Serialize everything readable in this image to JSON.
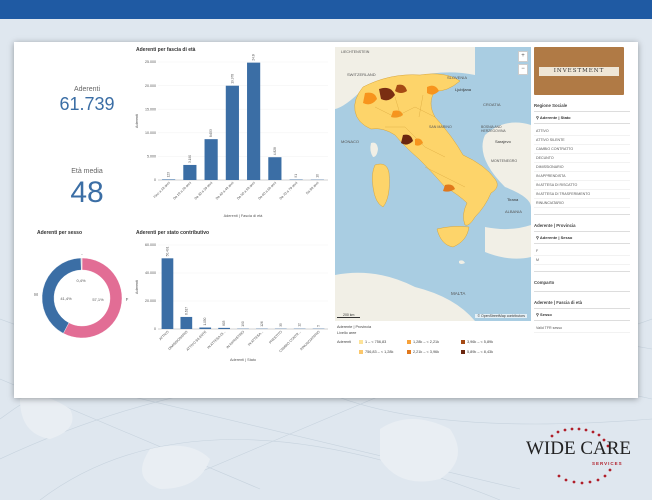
{
  "kpi": {
    "members_label": "Aderenti",
    "members_value": "61.739",
    "age_label": "Età media",
    "age_value": "48"
  },
  "age_chart": {
    "title": "Aderenti per fascia di età",
    "y_label": "Aderenti",
    "x_label": "Aderenti | Fascia di età",
    "y_ticks": [
      "25.000",
      "20.000",
      "15.000",
      "10.000",
      "5.000",
      "0"
    ]
  },
  "gender_chart": {
    "title": "Aderenti per sesso",
    "label_m": "M",
    "label_f": "F",
    "label_top": "-",
    "pct_m": "41,4%",
    "pct_f": "57,1%",
    "pct_other": "0,4%"
  },
  "status_chart": {
    "title": "Aderenti per stato contributivo",
    "y_label": "Aderenti",
    "x_label": "Aderenti | Stato",
    "y_ticks": [
      "60.000",
      "40.000",
      "20.000",
      "0"
    ]
  },
  "chart_data": [
    {
      "type": "bar",
      "title": "Aderenti per fascia di età",
      "xlabel": "Aderenti | Fascia di età",
      "ylabel": "Aderenti",
      "ylim": [
        0,
        25000
      ],
      "categories": [
        "Fino a 18 anni",
        "Da 19 a 29 anni",
        "Da 30 a 39 anni",
        "Da 40 a 49 anni",
        "Da 50 a 59 anni",
        "Da 60 a 69 anni",
        "Da 70 a 79 anni",
        "Da 80 anni"
      ],
      "values": [
        123,
        3190,
        8653,
        19978,
        24866,
        4828,
        91,
        10
      ],
      "value_labels": [
        "123",
        "3.190",
        "8.653",
        "19.978",
        "24.866",
        "4.828",
        "91",
        "10"
      ]
    },
    {
      "type": "pie",
      "title": "Aderenti per sesso",
      "categories": [
        "M",
        "F",
        "-"
      ],
      "values": [
        41.4,
        57.1,
        0.4
      ],
      "value_labels": [
        "41,4%",
        "57,1%",
        "0,4%"
      ]
    },
    {
      "type": "bar",
      "title": "Aderenti per stato contributivo",
      "xlabel": "Aderenti | Stato",
      "ylabel": "Aderenti",
      "ylim": [
        0,
        60000
      ],
      "categories": [
        "ATTIVO",
        "DIMISSIONARIO",
        "ATTIVO SILENTE",
        "IN ATTESA DI...",
        "IN RIPRISTINO",
        "IN ATTESA...",
        "PRESTITO",
        "CAMBIO CONTR...",
        "RINUNCIATARIO"
      ],
      "values": [
        50491,
        8617,
        1050,
        803,
        190,
        126,
        35,
        12,
        5
      ],
      "value_labels": [
        "50.491",
        "8.617",
        "1.050",
        "803",
        "190",
        "126",
        "35",
        "12",
        "5"
      ]
    }
  ],
  "map": {
    "labels": {
      "liechtenstein": "LIECHTENSTEIN",
      "switzerland": "SWITZERLAND",
      "slovenia": "SLOVENIA",
      "ljubljana": "Ljubljana",
      "croatia": "CROATIA",
      "san_marino": "SAN MARINO",
      "bosnia": "BOSNIA AND HERZEGOVINA",
      "sarajevo": "Sarajevo",
      "monaco": "MONACO",
      "montenegro": "MONTENEGRO",
      "tirana": "Tirana",
      "albania": "ALBANIA",
      "malta": "MALTA"
    },
    "credit": "© OpenStreetMap contributors",
    "scale": "200 km",
    "zoom_in": "+",
    "zoom_out": "−",
    "colors": {
      "sea": "#a9cde2",
      "land": "#f1efe6",
      "italy": "#fdd46a",
      "orange": "#f7941d",
      "brown": "#7a2e12"
    }
  },
  "legend": {
    "caption1": "Aderente | Provincia",
    "caption2": "Livello aree",
    "row_label": "Aderenti",
    "items": [
      {
        "label": "1 – < 756,83",
        "color": "#fde39a"
      },
      {
        "label": "1,28k – < 2,21k",
        "color": "#f7a23b"
      },
      {
        "label": "3,96k – < 5,89k",
        "color": "#a54a14"
      },
      {
        "label": "756,83 – < 1,28k",
        "color": "#fbc76b"
      },
      {
        "label": "2,21k – < 3,96k",
        "color": "#e0781c"
      },
      {
        "label": "5,89k – < 8,43k",
        "color": "#6b260f"
      }
    ]
  },
  "filters": {
    "investment_text": "INVESTMENT",
    "region_title": "Regione Sociale",
    "state_search": "Aderente | Stato",
    "states": [
      "ATTIVO",
      "ATTIVO SILENTE",
      "CAMBIO CONTRATTO",
      "DECUNTO",
      "DIMISSIONARIO",
      "IN APPRENDISTA",
      "IN ATTESA DI RISCATTO",
      "IN ATTESA DI TRASFERIMENTO",
      "RINUNCIATARIO"
    ],
    "province_title": "Aderente | Provincia",
    "gender_search": "Aderente | Sesso",
    "genders": [
      "F",
      "M"
    ],
    "company_title": "Comparto",
    "age_title": "Aderente | Fascia di età",
    "ter_search": "Sesso",
    "age_first": "Valid TFR sesso"
  },
  "logo": {
    "name": "WIDE CARE",
    "sub": "SERVICES"
  }
}
